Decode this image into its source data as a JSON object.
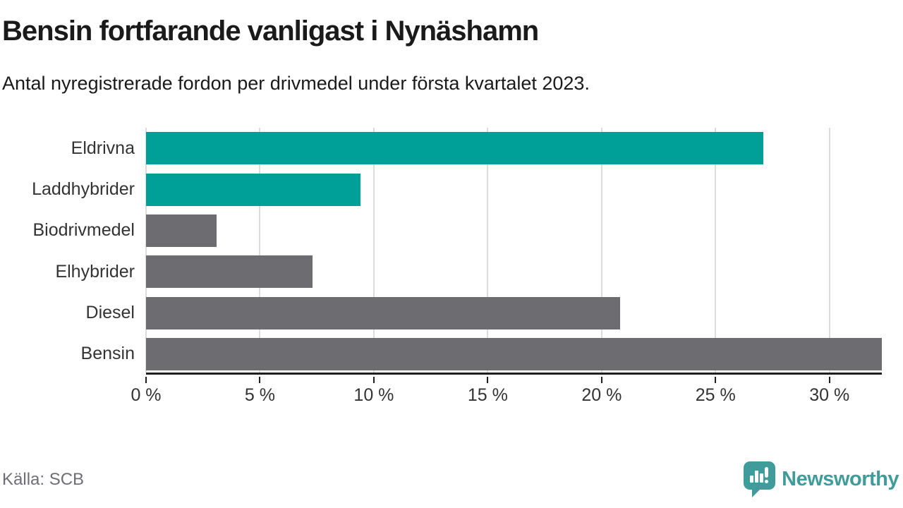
{
  "header": {
    "title": "Bensin fortfarande vanligast i Nynäshamn",
    "subtitle": "Antal nyregistrerade fordon per drivmedel under första kvartalet 2023."
  },
  "chart_data": {
    "type": "bar",
    "orientation": "horizontal",
    "title": "Bensin fortfarande vanligast i Nynäshamn",
    "subtitle": "Antal nyregistrerade fordon per drivmedel under första kvartalet 2023.",
    "categories": [
      "Eldrivna",
      "Laddhybrider",
      "Biodrivmedel",
      "Elhybrider",
      "Diesel",
      "Bensin"
    ],
    "values": [
      27.1,
      9.4,
      3.1,
      7.3,
      20.8,
      32.3
    ],
    "unit": "%",
    "xlabel": "",
    "ylabel": "",
    "xlim": [
      0,
      32.3
    ],
    "x_ticks": [
      0,
      5,
      10,
      15,
      20,
      25,
      30
    ],
    "x_tick_labels": [
      "0 %",
      "5 %",
      "10 %",
      "15 %",
      "20 %",
      "25 %",
      "30 %"
    ],
    "bar_colors": [
      "#00a099",
      "#00a099",
      "#6c6c71",
      "#6c6c71",
      "#6c6c71",
      "#6c6c71"
    ],
    "highlight_color": "#00a099",
    "default_color": "#6c6c71",
    "grid": true,
    "gridline_color": "#dcdcdc",
    "axis_color": "#1f1f1f",
    "legend": false
  },
  "footer": {
    "source": "Källa: SCB",
    "brand": {
      "name": "Newsworthy",
      "icon": "newsworthy-logo-icon",
      "color": "#3f9c9a"
    }
  }
}
